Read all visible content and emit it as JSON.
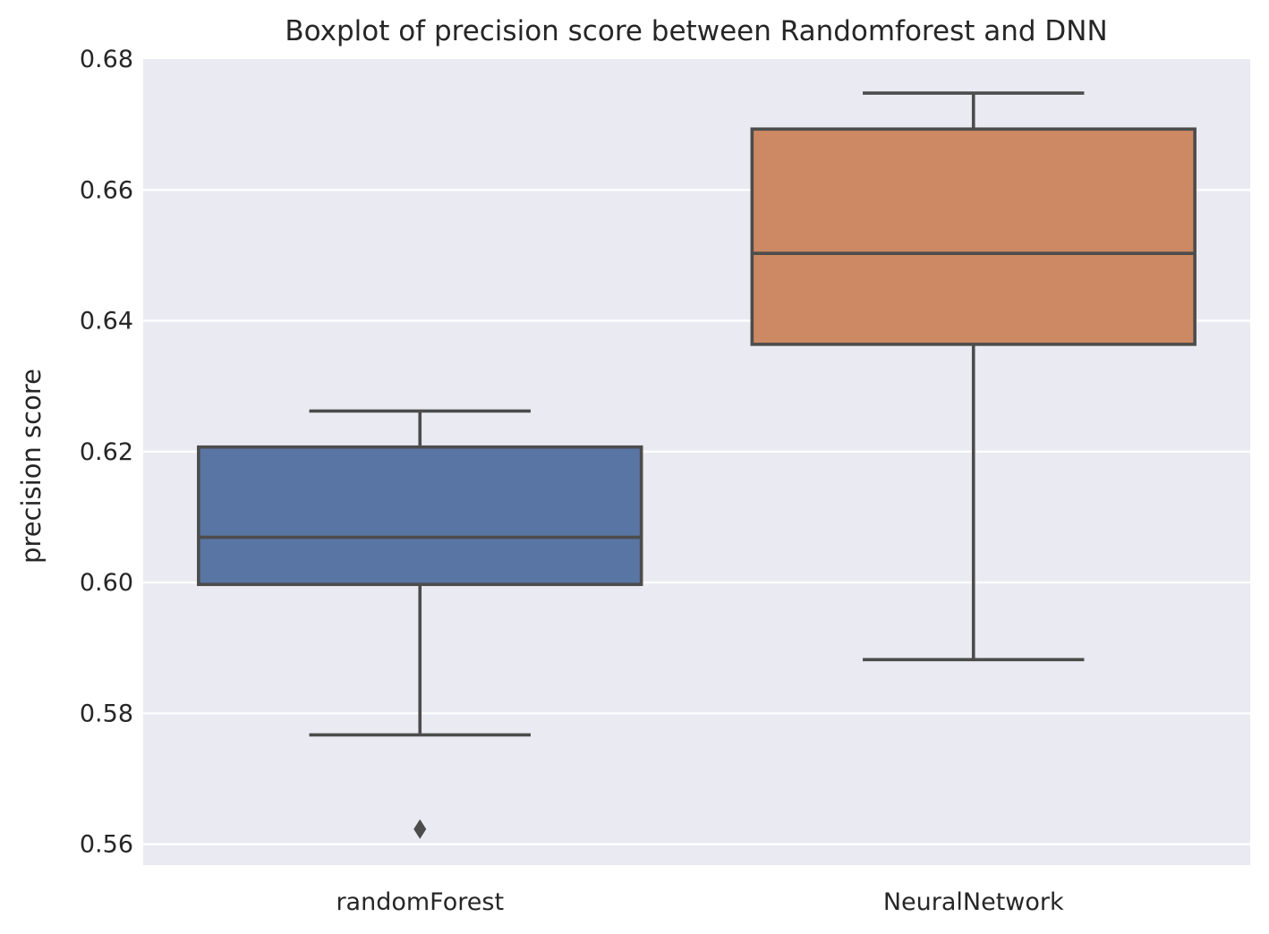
{
  "chart_data": {
    "type": "boxplot",
    "title": "Boxplot of precision score between Randomforest and DNN",
    "xlabel": "",
    "ylabel": "precision score",
    "ylim": [
      0.5568,
      0.68
    ],
    "yticks": [
      0.56,
      0.58,
      0.6,
      0.62,
      0.64,
      0.66,
      0.68
    ],
    "ytick_labels": [
      "0.56",
      "0.58",
      "0.60",
      "0.62",
      "0.64",
      "0.66",
      "0.68"
    ],
    "grid": true,
    "categories": [
      "randomForest",
      "NeuralNetwork"
    ],
    "boxes": [
      {
        "category": "randomForest",
        "whisker_low": 0.5767,
        "q1": 0.5997,
        "median": 0.6069,
        "q3": 0.6207,
        "whisker_high": 0.6262,
        "outliers": [
          0.5623
        ],
        "color": "#5975a4"
      },
      {
        "category": "NeuralNetwork",
        "whisker_low": 0.5882,
        "q1": 0.6364,
        "median": 0.6503,
        "q3": 0.6693,
        "whisker_high": 0.6748,
        "outliers": [],
        "color": "#cc8963"
      }
    ],
    "colors": {
      "background": "#eaeaf2",
      "grid": "#ffffff",
      "line": "#4c4c4c"
    }
  }
}
